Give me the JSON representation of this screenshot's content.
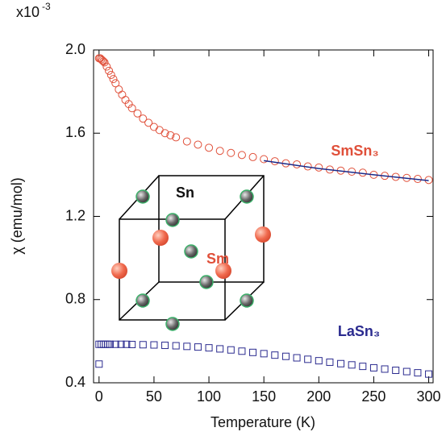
{
  "chart_data": {
    "type": "scatter",
    "x_label": "Temperature (K)",
    "y_label": "χ (emu/mol)",
    "multiplier": "x10",
    "multiplier_exp": "-3",
    "xlim": [
      -5,
      304
    ],
    "ylim": [
      0.4,
      2.0
    ],
    "xticks": [
      0,
      50,
      100,
      150,
      200,
      250,
      300
    ],
    "yticks": [
      0.4,
      0.8,
      1.2,
      1.6,
      {
        "value": 2.0,
        "label": "2.0"
      }
    ],
    "series": [
      {
        "name": "SmSn₃",
        "color": "#e0503a",
        "marker": "circle",
        "x": [
          0,
          1,
          2,
          3,
          4,
          5,
          7,
          9,
          11,
          13,
          15,
          18,
          21,
          24,
          27,
          30,
          35,
          40,
          45,
          50,
          55,
          60,
          65,
          70,
          80,
          90,
          100,
          110,
          120,
          130,
          140,
          150,
          160,
          170,
          180,
          190,
          200,
          210,
          220,
          230,
          240,
          250,
          260,
          270,
          280,
          290,
          300
        ],
        "values": [
          1.96,
          1.96,
          1.955,
          1.95,
          1.945,
          1.94,
          1.92,
          1.9,
          1.88,
          1.86,
          1.84,
          1.81,
          1.785,
          1.76,
          1.74,
          1.72,
          1.695,
          1.67,
          1.65,
          1.63,
          1.615,
          1.6,
          1.59,
          1.58,
          1.56,
          1.545,
          1.53,
          1.515,
          1.505,
          1.495,
          1.485,
          1.475,
          1.465,
          1.455,
          1.45,
          1.44,
          1.435,
          1.425,
          1.42,
          1.415,
          1.41,
          1.4,
          1.395,
          1.39,
          1.385,
          1.38,
          1.375
        ]
      },
      {
        "name": "LaSn₃",
        "color": "#2b2b8f",
        "marker": "square",
        "x": [
          0,
          0,
          2,
          4,
          6,
          8,
          10,
          15,
          20,
          25,
          30,
          40,
          50,
          60,
          70,
          80,
          90,
          100,
          110,
          120,
          130,
          140,
          150,
          160,
          170,
          180,
          190,
          200,
          210,
          220,
          230,
          240,
          250,
          260,
          270,
          280,
          290,
          300
        ],
        "values": [
          0.49,
          0.585,
          0.585,
          0.585,
          0.585,
          0.585,
          0.585,
          0.585,
          0.585,
          0.585,
          0.584,
          0.583,
          0.582,
          0.58,
          0.578,
          0.575,
          0.572,
          0.568,
          0.563,
          0.558,
          0.552,
          0.546,
          0.54,
          0.533,
          0.527,
          0.52,
          0.513,
          0.506,
          0.499,
          0.492,
          0.486,
          0.479,
          0.472,
          0.466,
          0.46,
          0.454,
          0.448,
          0.442
        ]
      }
    ],
    "fit": {
      "color": "#1a2a8a",
      "x": [
        150,
        200,
        250,
        300
      ],
      "values": [
        1.468,
        1.43,
        1.4,
        1.372
      ]
    },
    "annotations": {
      "sn": "Sn",
      "sm": "Sm"
    }
  }
}
